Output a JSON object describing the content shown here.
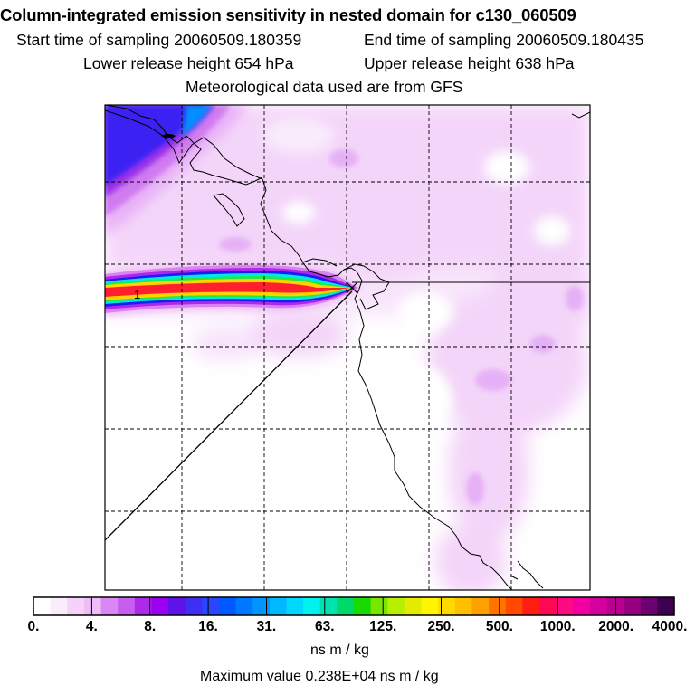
{
  "header": {
    "title": "Column-integrated emission sensitivity in nested domain for c130_060509",
    "start_time": "Start time of sampling 20060509.180359",
    "end_time": "End time of sampling 20060509.180435",
    "lower_release": "Lower release height  654 hPa",
    "upper_release": "Upper release height  638 hPa",
    "met_data": "Meteorological data used are from GFS"
  },
  "map": {
    "label_one": "1",
    "grid": "dashed",
    "background": "#ffffff",
    "coast_color": "#000000",
    "plume_colors": [
      "#f1c5f7",
      "#d983f0",
      "#ad27ef",
      "#1c1cf0",
      "#00e8ee",
      "#22e84c",
      "#ffd200",
      "#ff1f2f"
    ]
  },
  "colorbar": {
    "colors": [
      "#ffffff",
      "#fceafd",
      "#f6d2fb",
      "#efbcf9",
      "#d987f3",
      "#c65eef",
      "#ad2ae9",
      "#9b00f5",
      "#5e14e8",
      "#3f2ef4",
      "#2a46ff",
      "#0059ff",
      "#0077ff",
      "#0095ff",
      "#00b8ff",
      "#00d8ff",
      "#00f1ee",
      "#00e3b0",
      "#00d86a",
      "#16da00",
      "#7ae600",
      "#b8ee00",
      "#e3ec00",
      "#fff500",
      "#ffd900",
      "#ffc000",
      "#ffa000",
      "#ff7400",
      "#ff4a00",
      "#ff1e14",
      "#ff0a52",
      "#ff0a85",
      "#f000a0",
      "#d6009e",
      "#ba0090",
      "#960080",
      "#6c0070",
      "#3c0050"
    ],
    "tick_labels": [
      "0.",
      "4.",
      "8.",
      "16.",
      "31.",
      "63.",
      "125.",
      "250.",
      "500.",
      "1000.",
      "2000.",
      "4000."
    ],
    "units": "ns m / kg"
  },
  "footer": {
    "max_value": "Maximum value  0.238E+04 ns m / kg"
  }
}
